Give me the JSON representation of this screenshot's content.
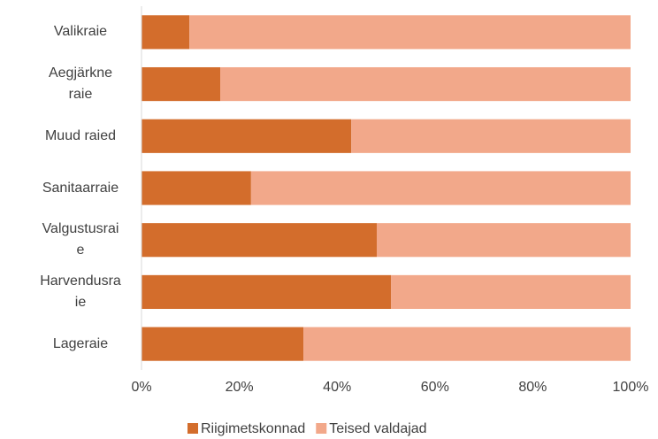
{
  "chart_data": {
    "type": "bar_stacked_100",
    "categories": [
      "Valikraie",
      "Aegjärkne raie",
      "Muud raied",
      "Sanitaarraie",
      "Valgustusraie",
      "Harvendusraie",
      "Lageraie"
    ],
    "series": [
      {
        "name": "Riigimetskonnad",
        "color": "#d36d2c",
        "values": [
          9.8,
          16.1,
          42.9,
          22.4,
          48.1,
          51.0,
          33.1
        ]
      },
      {
        "name": "Teised valdajad",
        "color": "#f2a88a",
        "values": [
          90.2,
          83.9,
          57.1,
          77.6,
          51.9,
          49.0,
          66.9
        ]
      }
    ],
    "xlim": [
      0,
      100
    ],
    "xticks": [
      {
        "value": 0,
        "label": "0%"
      },
      {
        "value": 20,
        "label": "20%"
      },
      {
        "value": 40,
        "label": "40%"
      },
      {
        "value": 60,
        "label": "60%"
      },
      {
        "value": 80,
        "label": "80%"
      },
      {
        "value": 100,
        "label": "100%"
      }
    ],
    "legend": "bottom"
  }
}
